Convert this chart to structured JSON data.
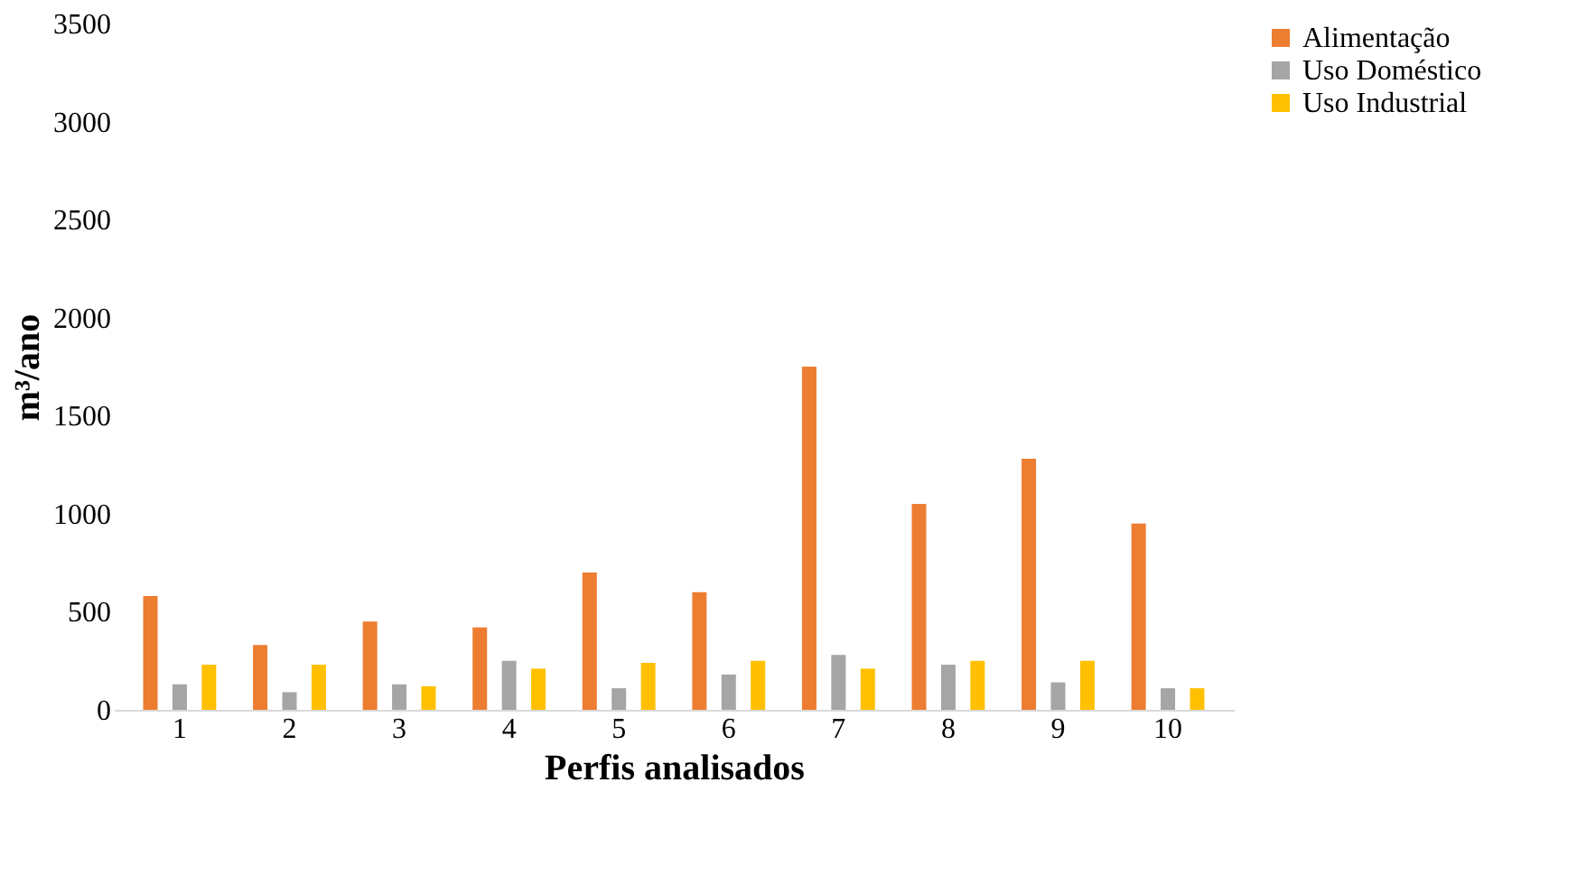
{
  "chart_data": {
    "type": "bar",
    "xlabel": "Perfis analisados",
    "ylabel": "m³/ano",
    "categories": [
      "1",
      "2",
      "3",
      "4",
      "5",
      "6",
      "7",
      "8",
      "9",
      "10"
    ],
    "series": [
      {
        "name": "Alimentação",
        "color": "#ed7d31",
        "values": [
          580,
          330,
          450,
          420,
          700,
          600,
          1750,
          1050,
          1280,
          950
        ]
      },
      {
        "name": "Uso Doméstico",
        "color": "#a5a5a5",
        "values": [
          130,
          90,
          130,
          250,
          110,
          180,
          280,
          230,
          140,
          110
        ]
      },
      {
        "name": "Uso Industrial",
        "color": "#ffc000",
        "values": [
          230,
          230,
          120,
          210,
          240,
          250,
          210,
          250,
          250,
          110
        ]
      }
    ],
    "ylim": [
      0,
      3500
    ],
    "yticks": [
      0,
      500,
      1000,
      1500,
      2000,
      2500,
      3000,
      3500
    ],
    "grid": false,
    "legend": "right"
  }
}
